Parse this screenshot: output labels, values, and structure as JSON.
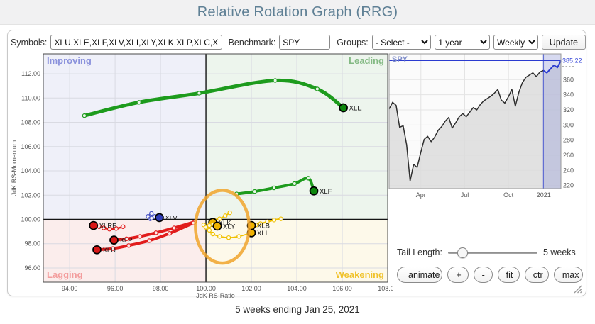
{
  "header": {
    "title": "Relative Rotation Graph (RRG)"
  },
  "toolbar": {
    "symbols_label": "Symbols:",
    "symbols_value": "XLU,XLE,XLF,XLV,XLI,XLY,XLK,XLP,XLC,XLRE,XL",
    "benchmark_label": "Benchmark:",
    "benchmark_value": "SPY",
    "groups_label": "Groups:",
    "groups_value": "- Select -",
    "period_value": "1 year",
    "frequency_value": "Weekly",
    "update_label": "Update"
  },
  "controls": {
    "tail_length_label": "Tail Length:",
    "tail_length_value": "5 weeks",
    "buttons": [
      "animate",
      "+",
      "-",
      "fit",
      "ctr",
      "max"
    ]
  },
  "caption": "5 weeks ending Jan 25, 2021",
  "chart_data": [
    {
      "type": "scatter",
      "title": "Relative Rotation Graph",
      "xlabel": "JdK RS-Ratio",
      "ylabel": "JdK RS-Momentum",
      "xlim": [
        92.84,
        108.0
      ],
      "ylim": [
        94.83,
        113.64
      ],
      "xticks": [
        94,
        96,
        98,
        100,
        102,
        104,
        106,
        108
      ],
      "yticks": [
        96,
        98,
        100,
        102,
        104,
        106,
        108,
        110,
        112
      ],
      "center": [
        100,
        100
      ],
      "grid": true,
      "quadrants": {
        "improving": {
          "label": "Improving",
          "color": "#8a91dc",
          "bg": "#eff0f9"
        },
        "leading": {
          "label": "Leading",
          "color": "#83b983",
          "bg": "#edf5ed"
        },
        "lagging": {
          "label": "Lagging",
          "color": "#f39d9d",
          "bg": "#fbedec"
        },
        "weakening": {
          "label": "Weakening",
          "color": "#f0c22b",
          "bg": "#fdf9ea"
        }
      },
      "series": [
        {
          "name": "XLV",
          "color": "#4753c4",
          "dot": "#2e3cb8",
          "width": 2,
          "points": [
            [
              97.6,
              100.5
            ],
            [
              97.45,
              100.25
            ],
            [
              97.55,
              100.05
            ],
            [
              97.75,
              100.25
            ],
            [
              97.6,
              100.1
            ],
            [
              97.95,
              100.15
            ]
          ]
        },
        {
          "name": "XLRE",
          "color": "#e11c1c",
          "dot": "#d81717",
          "width": 2.5,
          "points": [
            [
              96.35,
              99.4
            ],
            [
              96.05,
              99.25
            ],
            [
              95.75,
              99.2
            ],
            [
              95.5,
              99.3
            ],
            [
              95.3,
              99.4
            ],
            [
              95.05,
              99.5
            ]
          ]
        },
        {
          "name": "XLP",
          "color": "#e11c1c",
          "dot": "#d81717",
          "width": 4,
          "points": [
            [
              99.5,
              99.8
            ],
            [
              98.6,
              99.3
            ],
            [
              97.8,
              98.9
            ],
            [
              97.1,
              98.6
            ],
            [
              96.5,
              98.4
            ],
            [
              95.95,
              98.3
            ]
          ]
        },
        {
          "name": "XLU",
          "color": "#e11c1c",
          "dot": "#d81717",
          "width": 4,
          "points": [
            [
              99.45,
              99.7
            ],
            [
              98.4,
              98.85
            ],
            [
              97.5,
              98.25
            ],
            [
              96.6,
              97.85
            ],
            [
              95.9,
              97.6
            ],
            [
              95.2,
              97.5
            ]
          ]
        },
        {
          "name": "XLK",
          "color": "#f0c000",
          "dot": "#f0b400",
          "width": 1.8,
          "points": [
            [
              101.05,
              100.55
            ],
            [
              100.85,
              100.3
            ],
            [
              100.6,
              100.05
            ],
            [
              100.4,
              99.9
            ],
            [
              100.25,
              99.8
            ],
            [
              100.3,
              99.75
            ]
          ]
        },
        {
          "name": "XLY",
          "color": "#f0c000",
          "dot": "#f0b400",
          "width": 1.8,
          "points": [
            [
              99.9,
              99.55
            ],
            [
              100.0,
              99.35
            ],
            [
              100.15,
              99.5
            ],
            [
              100.3,
              99.6
            ],
            [
              100.4,
              99.55
            ],
            [
              100.5,
              99.45
            ]
          ]
        },
        {
          "name": "XLI",
          "color": "#f0c000",
          "dot": "#f0b400",
          "width": 1.8,
          "points": [
            [
              100.15,
              99.1
            ],
            [
              100.3,
              98.8
            ],
            [
              100.6,
              98.6
            ],
            [
              101.0,
              98.5
            ],
            [
              101.45,
              98.6
            ],
            [
              102.0,
              98.9
            ]
          ]
        },
        {
          "name": "XLB",
          "color": "#f0c000",
          "dot": "#f0b400",
          "width": 2.2,
          "points": [
            [
              103.3,
              100.05
            ],
            [
              103.0,
              99.95
            ],
            [
              102.7,
              99.8
            ],
            [
              102.4,
              99.65
            ],
            [
              102.2,
              99.55
            ],
            [
              102.0,
              99.5
            ]
          ]
        },
        {
          "name": "XLF",
          "color": "#1d9b1d",
          "dot": "#0d870d",
          "width": 4,
          "points": [
            [
              101.35,
              102.1
            ],
            [
              102.15,
              102.3
            ],
            [
              103.0,
              102.6
            ],
            [
              103.9,
              102.95
            ],
            [
              104.5,
              103.4
            ],
            [
              104.75,
              102.35
            ]
          ]
        },
        {
          "name": "XLE",
          "color": "#1d9b1d",
          "dot": "#0d870d",
          "width": 5,
          "points": [
            [
              94.65,
              108.55
            ],
            [
              97.05,
              109.65
            ],
            [
              99.7,
              110.4
            ],
            [
              103.05,
              111.45
            ],
            [
              104.9,
              110.75
            ],
            [
              106.05,
              109.2
            ]
          ]
        }
      ],
      "annotation_ellipse": {
        "cx": 100.72,
        "cy": 99.4,
        "rx": 1.18,
        "ry": 3.0,
        "color": "#f0a42c"
      }
    },
    {
      "type": "area",
      "symbol": "SPY",
      "last_price": "385.22",
      "dashed_marker_value": 377,
      "ylim": [
        216,
        394
      ],
      "yticks": [
        220,
        240,
        260,
        280,
        300,
        320,
        340,
        360
      ],
      "xtick_labels": [
        "Apr",
        "Jul",
        "Oct",
        "2021"
      ],
      "xtick_pos": [
        0.185,
        0.44,
        0.695,
        0.9
      ],
      "highlight_weeks": 5,
      "line_color": "#2e2e2e",
      "area_color": "#dcdcdc",
      "recent_color": "#2b3bd0",
      "band_color": "rgba(130,140,215,0.30)",
      "values": [
        321,
        330,
        326,
        297,
        299,
        274,
        226,
        248,
        244,
        263,
        281,
        285,
        278,
        284,
        293,
        298,
        305,
        310,
        296,
        303,
        311,
        315,
        311,
        317,
        323,
        320,
        327,
        332,
        335,
        338,
        342,
        347,
        333,
        329,
        337,
        347,
        325,
        343,
        356,
        363,
        366,
        369,
        364,
        370,
        372,
        369,
        374,
        379,
        376,
        385.22
      ]
    }
  ]
}
